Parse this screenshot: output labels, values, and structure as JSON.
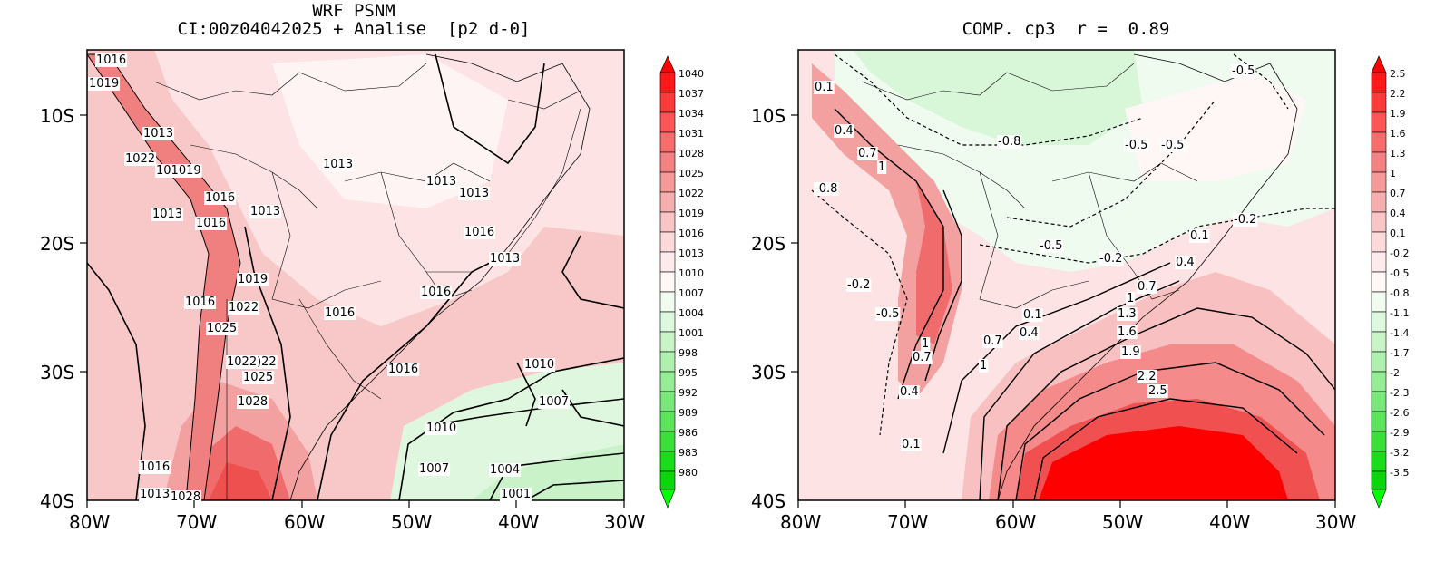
{
  "left_panel": {
    "title_line1": "WRF PSNM",
    "title_line2": "CI:00z04042025 + Analise  [p2 d-0]",
    "lat_labels": [
      "10S",
      "20S",
      "30S",
      "40S"
    ],
    "lon_labels": [
      "80W",
      "70W",
      "60W",
      "50W",
      "40W",
      "30W"
    ],
    "colorbar_labels": [
      "1040",
      "1037",
      "1034",
      "1031",
      "1028",
      "1025",
      "1022",
      "1019",
      "1016",
      "1013",
      "1010",
      "1007",
      "1004",
      "1001",
      "998",
      "995",
      "992",
      "989",
      "986",
      "983",
      "980"
    ],
    "contour_labels": [
      "1016",
      "1019",
      "1013",
      "1022",
      "101019",
      "1016",
      "1013",
      "1016",
      "1013",
      "1013",
      "1013",
      "1013",
      "1016",
      "1013",
      "1016",
      "1019",
      "1016",
      "1022",
      "1025",
      "1016",
      "1022)22",
      "1025",
      "1016",
      "1028",
      "1010",
      "1007",
      "1010",
      "1007",
      "1004",
      "1001",
      "1016",
      "1013",
      "1028"
    ]
  },
  "right_panel": {
    "title": "COMP. cp3  r =  0.89",
    "lat_labels": [
      "10S",
      "20S",
      "30S",
      "40S"
    ],
    "lon_labels": [
      "80W",
      "70W",
      "60W",
      "50W",
      "40W",
      "30W"
    ],
    "colorbar_labels": [
      "2.5",
      "2.2",
      "1.9",
      "1.6",
      "1.3",
      "1",
      "0.7",
      "0.4",
      "0.1",
      "-0.2",
      "-0.5",
      "-0.8",
      "-1.1",
      "-1.4",
      "-1.7",
      "-2",
      "-2.3",
      "-2.6",
      "-2.9",
      "-3.2",
      "-3.5"
    ],
    "contour_labels": [
      "0.1",
      "0.4",
      "0.7",
      "1",
      "-0.8",
      "-0.8",
      "-0.5",
      "-0.5",
      "-0.5",
      "-0.2",
      "-0.2",
      "-0.5",
      "0.1",
      "0.4",
      "0.7",
      "1",
      "1.3",
      "1.6",
      "1.9",
      "2.2",
      "2.5",
      "0.1",
      "0.4",
      "0.7",
      "1",
      "0.7",
      "1",
      "0.4",
      "0.1",
      "-0.5",
      "-0.2"
    ]
  },
  "colors": {
    "red_high": "#ff0000",
    "red_mid": "#f08080",
    "pink_light": "#fde3e3",
    "green_light": "#d4f5d4",
    "green_high": "#00ff00"
  }
}
